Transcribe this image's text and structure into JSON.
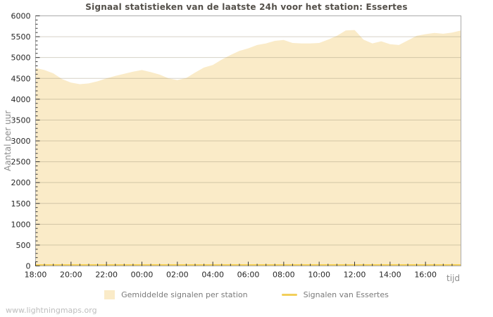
{
  "footer": "www.lightningmaps.org",
  "colors": {
    "area_fill": "#FAEBC8",
    "line": "#F2CF5B",
    "grid": "rgba(150,140,115,0.40)",
    "border": "#ABABAB",
    "tick": "#333333",
    "tick_label": "#262626",
    "title": "#54504A",
    "axis_label": "#8C8C8C",
    "legend_text": "#7A7A7A",
    "footer": "#BDBDBD"
  },
  "chart_data": {
    "type": "area",
    "title": "Signaal statistieken van de laatste 24h voor het station: Essertes",
    "xlabel": "tijd",
    "ylabel": "Aantal per uur",
    "ylim": [
      0,
      6000
    ],
    "y_tick_step": 500,
    "y_minor_step": 100,
    "x_range_hours": 24,
    "x_major_step_hours": 2,
    "x_minor_step_hours": 0.5,
    "x_tick_labels": [
      "18:00",
      "20:00",
      "22:00",
      "00:00",
      "02:00",
      "04:00",
      "06:00",
      "08:00",
      "10:00",
      "12:00",
      "14:00",
      "16:00"
    ],
    "grid": true,
    "legend_position": "bottom",
    "x_hours": [
      0,
      0.5,
      1,
      1.5,
      2,
      2.5,
      3,
      3.5,
      4,
      4.5,
      5,
      5.5,
      6,
      6.5,
      7,
      7.5,
      8,
      8.5,
      9,
      9.5,
      10,
      10.5,
      11,
      11.5,
      12,
      12.5,
      13,
      13.5,
      14,
      14.5,
      15,
      15.5,
      16,
      16.5,
      17,
      17.5,
      18,
      18.5,
      19,
      19.5,
      20,
      20.5,
      21,
      21.5,
      22,
      22.5,
      23,
      23.5,
      24
    ],
    "series": [
      {
        "name": "Gemiddelde signalen per station",
        "type": "area",
        "color": "#FAEBC8",
        "values": [
          4750,
          4700,
          4620,
          4480,
          4400,
          4360,
          4380,
          4430,
          4500,
          4560,
          4610,
          4660,
          4700,
          4650,
          4590,
          4500,
          4460,
          4510,
          4640,
          4760,
          4820,
          4950,
          5060,
          5160,
          5220,
          5300,
          5340,
          5400,
          5420,
          5350,
          5340,
          5340,
          5350,
          5430,
          5520,
          5650,
          5660,
          5430,
          5340,
          5390,
          5320,
          5300,
          5410,
          5520,
          5560,
          5590,
          5570,
          5600,
          5650
        ]
      },
      {
        "name": "Signalen van Essertes",
        "type": "line",
        "color": "#F2CF5B",
        "values": [
          25,
          25,
          25,
          25,
          25,
          25,
          25,
          25,
          25,
          25,
          25,
          25,
          25,
          25,
          25,
          25,
          25,
          25,
          25,
          25,
          25,
          25,
          25,
          25,
          25,
          25,
          25,
          25,
          25,
          25,
          25,
          25,
          25,
          25,
          25,
          25,
          25,
          25,
          25,
          25,
          25,
          25,
          25,
          25,
          25,
          25,
          25,
          25,
          25
        ]
      }
    ]
  }
}
